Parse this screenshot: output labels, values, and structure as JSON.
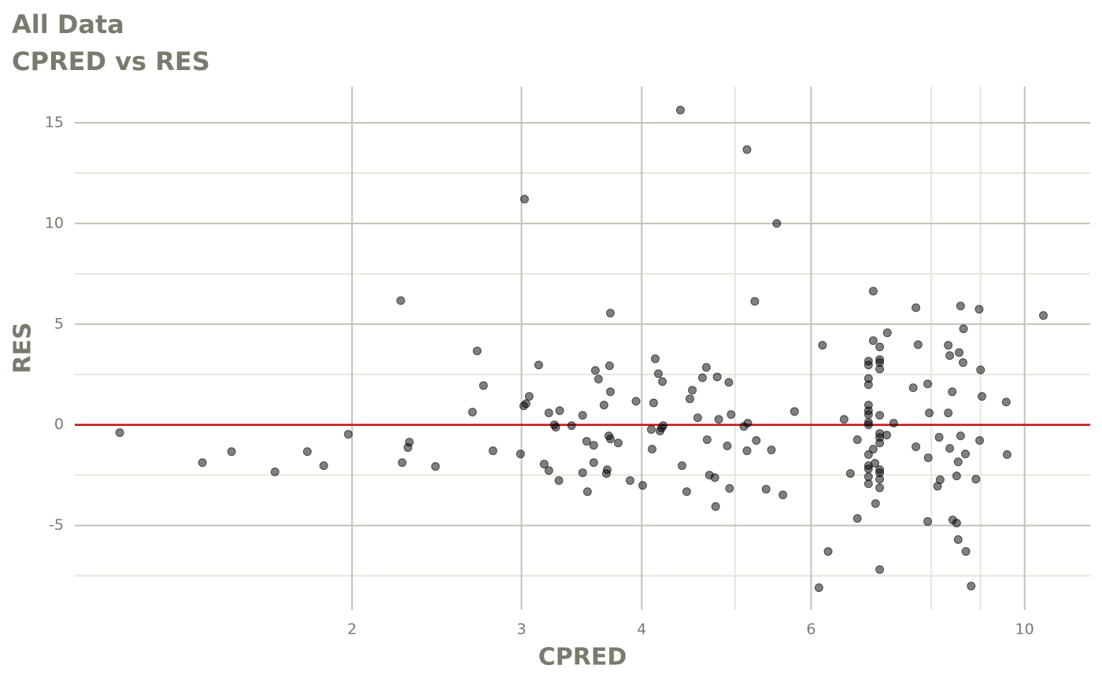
{
  "chart_data": {
    "type": "scatter",
    "title": "All Data",
    "subtitle": "CPRED vs RES",
    "x_label": "CPRED",
    "y_label": "RES",
    "x_scale": "log",
    "xlim": [
      1.03,
      11.7
    ],
    "ylim": [
      -9.2,
      16.8
    ],
    "xticks": [
      2,
      3,
      4,
      6,
      10
    ],
    "yticks": [
      -5,
      0,
      5,
      10,
      15
    ],
    "x_minor_grid": [
      5,
      8,
      9
    ],
    "y_minor_grid": [
      -7.5,
      -2.5,
      2.5,
      7.5,
      12.5
    ],
    "grid": true,
    "hline": {
      "value": 0,
      "color": "#cc1111"
    },
    "series": [
      {
        "color": "#000000",
        "x": [
          1.147,
          1.398,
          1.499,
          1.663,
          1.797,
          1.869,
          1.982,
          2.247,
          2.255,
          2.286,
          2.294,
          2.442,
          2.668,
          2.698,
          2.739,
          2.802,
          2.993,
          3.016,
          3.033,
          3.022,
          3.056,
          3.126,
          3.167,
          3.203,
          3.203,
          3.245,
          3.257,
          3.281,
          3.287,
          3.382,
          3.473,
          3.473,
          3.506,
          3.513,
          3.566,
          3.566,
          3.58,
          3.607,
          3.655,
          3.676,
          3.683,
          3.697,
          3.704,
          3.711,
          3.711,
          3.711,
          3.781,
          3.89,
          3.946,
          4.009,
          4.093,
          4.101,
          4.116,
          4.132,
          4.163,
          4.179,
          4.195,
          4.203,
          4.211,
          4.388,
          4.405,
          4.455,
          4.489,
          4.515,
          4.574,
          4.626,
          4.669,
          4.678,
          4.704,
          4.765,
          4.774,
          4.792,
          4.81,
          4.909,
          4.927,
          4.936,
          4.954,
          5.108,
          5.146,
          5.156,
          5.146,
          5.243,
          5.262,
          5.387,
          5.456,
          5.526,
          5.608,
          5.766,
          6.113,
          6.165,
          6.249,
          6.492,
          6.591,
          6.702,
          6.702,
          6.883,
          6.883,
          6.883,
          6.883,
          6.883,
          6.883,
          6.883,
          6.883,
          6.883,
          6.883,
          6.883,
          6.883,
          6.883,
          6.883,
          6.961,
          6.961,
          6.961,
          6.99,
          7.0,
          7.07,
          7.07,
          7.07,
          7.07,
          7.07,
          7.07,
          7.07,
          7.07,
          7.07,
          7.07,
          7.07,
          7.07,
          7.07,
          7.2,
          7.19,
          7.31,
          7.66,
          7.71,
          7.71,
          7.75,
          7.93,
          7.93,
          7.94,
          7.96,
          8.12,
          8.15,
          8.17,
          8.33,
          8.33,
          8.36,
          8.36,
          8.41,
          8.42,
          8.5,
          8.5,
          8.53,
          8.53,
          8.55,
          8.58,
          8.58,
          8.63,
          8.64,
          8.68,
          8.69,
          8.8,
          8.9,
          8.97,
          8.98,
          9.0,
          9.03,
          9.57,
          9.59,
          10.46
        ],
        "values": [
          -0.39,
          -1.88,
          -1.33,
          -2.34,
          -1.33,
          -2.03,
          -0.47,
          6.17,
          -1.88,
          -1.13,
          -0.86,
          -2.07,
          0.63,
          3.67,
          1.95,
          -1.29,
          -1.45,
          0.94,
          1.05,
          11.21,
          1.41,
          2.97,
          -1.95,
          0.59,
          -2.27,
          0,
          -0.12,
          -2.77,
          0.7,
          -0.04,
          0.47,
          -2.38,
          -0.82,
          -3.32,
          -1.02,
          -1.88,
          2.7,
          2.27,
          0.98,
          -2.42,
          -2.23,
          -0.55,
          2.93,
          -0.7,
          5.55,
          1.64,
          -0.9,
          -2.77,
          1.17,
          -3.01,
          -0.23,
          -1.21,
          1.09,
          3.28,
          2.54,
          -0.31,
          -0.16,
          2.15,
          -0.04,
          15.63,
          -2.03,
          -3.32,
          1.29,
          1.72,
          0.35,
          2.34,
          2.85,
          -0.74,
          -2.5,
          -2.62,
          -4.06,
          2.38,
          0.27,
          -1.05,
          2.11,
          -3.16,
          0.51,
          -0.08,
          13.67,
          0.08,
          -1.29,
          6.13,
          -0.78,
          -3.2,
          -1.25,
          10.0,
          -3.48,
          0.66,
          -8.09,
          3.95,
          -6.29,
          0.27,
          -2.42,
          -0.74,
          -4.65,
          3.16,
          2.97,
          2.3,
          1.99,
          0.98,
          0.7,
          0.51,
          0.12,
          0,
          -1.48,
          -2.03,
          -2.19,
          -2.58,
          -2.93,
          6.64,
          4.18,
          -1.21,
          -1.91,
          -3.91,
          3.87,
          3.24,
          3.09,
          2.77,
          0.47,
          -0.43,
          -0.63,
          -0.9,
          -2.23,
          -2.38,
          -2.7,
          -3.13,
          -7.19,
          4.57,
          -0.51,
          0.08,
          1.84,
          5.82,
          -1.09,
          3.98,
          2.03,
          -4.8,
          -1.64,
          0.59,
          -3.05,
          -0.62,
          -2.73,
          3.95,
          0.59,
          3.44,
          -1.17,
          1.64,
          -4.73,
          -2.54,
          -4.88,
          -5.7,
          -1.84,
          3.59,
          5.9,
          -0.55,
          3.09,
          4.77,
          -1.45,
          -6.29,
          -8.01,
          -2.7,
          5.74,
          -0.78,
          2.73,
          1.41,
          1.13,
          -1.48,
          5.43
        ]
      }
    ]
  }
}
